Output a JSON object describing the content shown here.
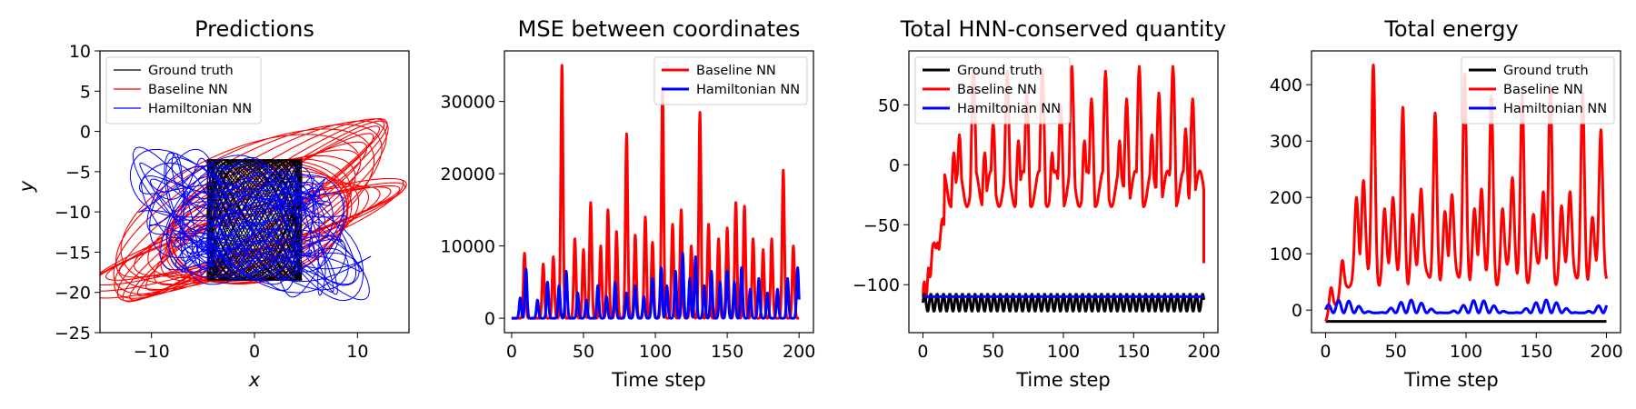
{
  "colors": {
    "ground_truth": "#000000",
    "baseline": "#ff0000",
    "hamiltonian": "#0000ff",
    "legend_border": "#cccccc"
  },
  "chart_data": [
    {
      "type": "line",
      "title": "Predictions",
      "xlabel": "x",
      "ylabel": "y",
      "xlim": [
        -15,
        15
      ],
      "ylim": [
        -25,
        10
      ],
      "xticks": [
        -10,
        0,
        10
      ],
      "yticks": [
        10,
        5,
        0,
        -5,
        -10,
        -15,
        -20,
        -25
      ],
      "tick_labels_x": [
        "−10",
        "0",
        "10"
      ],
      "tick_labels_y": [
        "10",
        "5",
        "0",
        "−5",
        "−10",
        "−15",
        "−20",
        "−25"
      ],
      "legend": {
        "position": "top-left",
        "entries": [
          "Ground truth",
          "Baseline NN",
          "Hamiltonian NN"
        ]
      },
      "series": [
        {
          "name": "Ground truth",
          "color": "#000000",
          "kind": "trajectory",
          "x_range": [
            -5,
            5
          ],
          "y_range": [
            -19,
            -3
          ]
        },
        {
          "name": "Baseline NN",
          "color": "#ff0000",
          "kind": "trajectory",
          "x_range": [
            -15,
            14
          ],
          "y_range": [
            -24,
            1.5
          ]
        },
        {
          "name": "Hamiltonian NN",
          "color": "#0000ff",
          "kind": "trajectory",
          "x_range": [
            -10,
            9
          ],
          "y_range": [
            -21,
            -3
          ]
        }
      ]
    },
    {
      "type": "line",
      "title": "MSE between coordinates",
      "xlabel": "Time step",
      "ylabel": "",
      "xlim": [
        -5,
        210
      ],
      "ylim": [
        -2000,
        37000
      ],
      "xticks": [
        0,
        50,
        100,
        150,
        200
      ],
      "yticks": [
        0,
        10000,
        20000,
        30000
      ],
      "tick_labels_x": [
        "0",
        "50",
        "100",
        "150",
        "200"
      ],
      "tick_labels_y": [
        "0",
        "10000",
        "20000",
        "30000"
      ],
      "legend": {
        "position": "top-right",
        "entries": [
          "Baseline NN",
          "Hamiltonian NN"
        ]
      },
      "series": [
        {
          "name": "Baseline NN",
          "color": "#ff0000",
          "peaks": [
            [
              9,
              9000
            ],
            [
              22,
              7500
            ],
            [
              29,
              8500
            ],
            [
              35,
              35000
            ],
            [
              44,
              11000
            ],
            [
              50,
              9500
            ],
            [
              55,
              16000
            ],
            [
              62,
              10000
            ],
            [
              67,
              15000
            ],
            [
              73,
              12000
            ],
            [
              80,
              25500
            ],
            [
              86,
              11500
            ],
            [
              93,
              14000
            ],
            [
              98,
              10500
            ],
            [
              105,
              32000
            ],
            [
              112,
              13000
            ],
            [
              118,
              15000
            ],
            [
              125,
              10000
            ],
            [
              131,
              28500
            ],
            [
              137,
              13000
            ],
            [
              144,
              11000
            ],
            [
              150,
              12500
            ],
            [
              156,
              16000
            ],
            [
              162,
              15500
            ],
            [
              168,
              11000
            ],
            [
              175,
              9500
            ],
            [
              181,
              11000
            ],
            [
              189,
              20500
            ],
            [
              196,
              10000
            ]
          ]
        },
        {
          "name": "Hamiltonian NN",
          "color": "#0000ff",
          "peaks": [
            [
              6,
              2800
            ],
            [
              10,
              6800
            ],
            [
              18,
              2500
            ],
            [
              25,
              5000
            ],
            [
              33,
              4500
            ],
            [
              38,
              6500
            ],
            [
              46,
              3500
            ],
            [
              52,
              2500
            ],
            [
              60,
              4500
            ],
            [
              66,
              3000
            ],
            [
              72,
              5000
            ],
            [
              80,
              3500
            ],
            [
              86,
              4500
            ],
            [
              92,
              3000
            ],
            [
              98,
              5500
            ],
            [
              104,
              7000
            ],
            [
              108,
              4500
            ],
            [
              114,
              6500
            ],
            [
              119,
              9000
            ],
            [
              124,
              5500
            ],
            [
              128,
              8500
            ],
            [
              134,
              4500
            ],
            [
              139,
              6500
            ],
            [
              145,
              5000
            ],
            [
              150,
              6500
            ],
            [
              155,
              5000
            ],
            [
              160,
              7000
            ],
            [
              166,
              4000
            ],
            [
              172,
              5500
            ],
            [
              178,
              3500
            ],
            [
              185,
              4000
            ],
            [
              192,
              5500
            ],
            [
              199,
              7000
            ]
          ]
        }
      ]
    },
    {
      "type": "line",
      "title": "Total HNN-conserved quantity",
      "xlabel": "Time step",
      "ylabel": "",
      "xlim": [
        -10,
        210
      ],
      "ylim": [
        -140,
        95
      ],
      "xticks": [
        0,
        50,
        100,
        150,
        200
      ],
      "yticks": [
        50,
        0,
        -50,
        -100
      ],
      "tick_labels_x": [
        "0",
        "50",
        "100",
        "150",
        "200"
      ],
      "tick_labels_y": [
        "50",
        "0",
        "−50",
        "−100"
      ],
      "legend": {
        "position": "top-left",
        "entries": [
          "Ground truth",
          "Baseline NN",
          "Hamiltonian NN"
        ]
      },
      "series": [
        {
          "name": "Ground truth",
          "color": "#000000",
          "baseline_value": -112,
          "oscillation_min": -122,
          "oscillation_max": -108,
          "period": 4.5
        },
        {
          "name": "Baseline NN",
          "color": "#ff0000",
          "peaks": [
            [
              8,
              -65
            ],
            [
              14,
              -45
            ],
            [
              22,
              10
            ],
            [
              26,
              25
            ],
            [
              36,
              80
            ],
            [
              44,
              10
            ],
            [
              50,
              35
            ],
            [
              60,
              78
            ],
            [
              68,
              20
            ],
            [
              74,
              60
            ],
            [
              85,
              80
            ],
            [
              92,
              10
            ],
            [
              98,
              50
            ],
            [
              106,
              82
            ],
            [
              115,
              20
            ],
            [
              120,
              55
            ],
            [
              130,
              78
            ],
            [
              140,
              20
            ],
            [
              145,
              55
            ],
            [
              154,
              82
            ],
            [
              163,
              25
            ],
            [
              168,
              60
            ],
            [
              178,
              82
            ],
            [
              187,
              30
            ],
            [
              192,
              55
            ],
            [
              199,
              -80
            ]
          ]
        },
        {
          "name": "Hamiltonian NN",
          "color": "#0000ff",
          "baseline_value": -110
        }
      ]
    },
    {
      "type": "line",
      "title": "Total energy",
      "xlabel": "Time step",
      "ylabel": "",
      "xlim": [
        -10,
        210
      ],
      "ylim": [
        -40,
        460
      ],
      "xticks": [
        0,
        50,
        100,
        150,
        200
      ],
      "yticks": [
        0,
        100,
        200,
        300,
        400
      ],
      "tick_labels_x": [
        "0",
        "50",
        "100",
        "150",
        "200"
      ],
      "tick_labels_y": [
        "0",
        "100",
        "200",
        "300",
        "400"
      ],
      "legend": {
        "position": "top-right",
        "entries": [
          "Ground truth",
          "Baseline NN",
          "Hamiltonian NN"
        ]
      },
      "series": [
        {
          "name": "Ground truth",
          "color": "#000000",
          "baseline_value": -20
        },
        {
          "name": "Baseline NN",
          "color": "#ff0000",
          "peaks": [
            [
              4,
              40
            ],
            [
              12,
              88
            ],
            [
              22,
              200
            ],
            [
              27,
              230
            ],
            [
              34,
              435
            ],
            [
              42,
              180
            ],
            [
              48,
              200
            ],
            [
              55,
              360
            ],
            [
              62,
              170
            ],
            [
              68,
              215
            ],
            [
              78,
              350
            ],
            [
              85,
              175
            ],
            [
              90,
              205
            ],
            [
              99,
              420
            ],
            [
              106,
              180
            ],
            [
              111,
              215
            ],
            [
              118,
              380
            ],
            [
              126,
              180
            ],
            [
              133,
              235
            ],
            [
              140,
              385
            ],
            [
              148,
              170
            ],
            [
              155,
              210
            ],
            [
              160,
              400
            ],
            [
              168,
              185
            ],
            [
              174,
              210
            ],
            [
              183,
              385
            ],
            [
              190,
              165
            ],
            [
              196,
              320
            ],
            [
              199,
              35
            ]
          ]
        },
        {
          "name": "Hamiltonian NN",
          "color": "#0000ff",
          "baseline_value": -5,
          "oscillation_max": 18
        }
      ]
    }
  ]
}
